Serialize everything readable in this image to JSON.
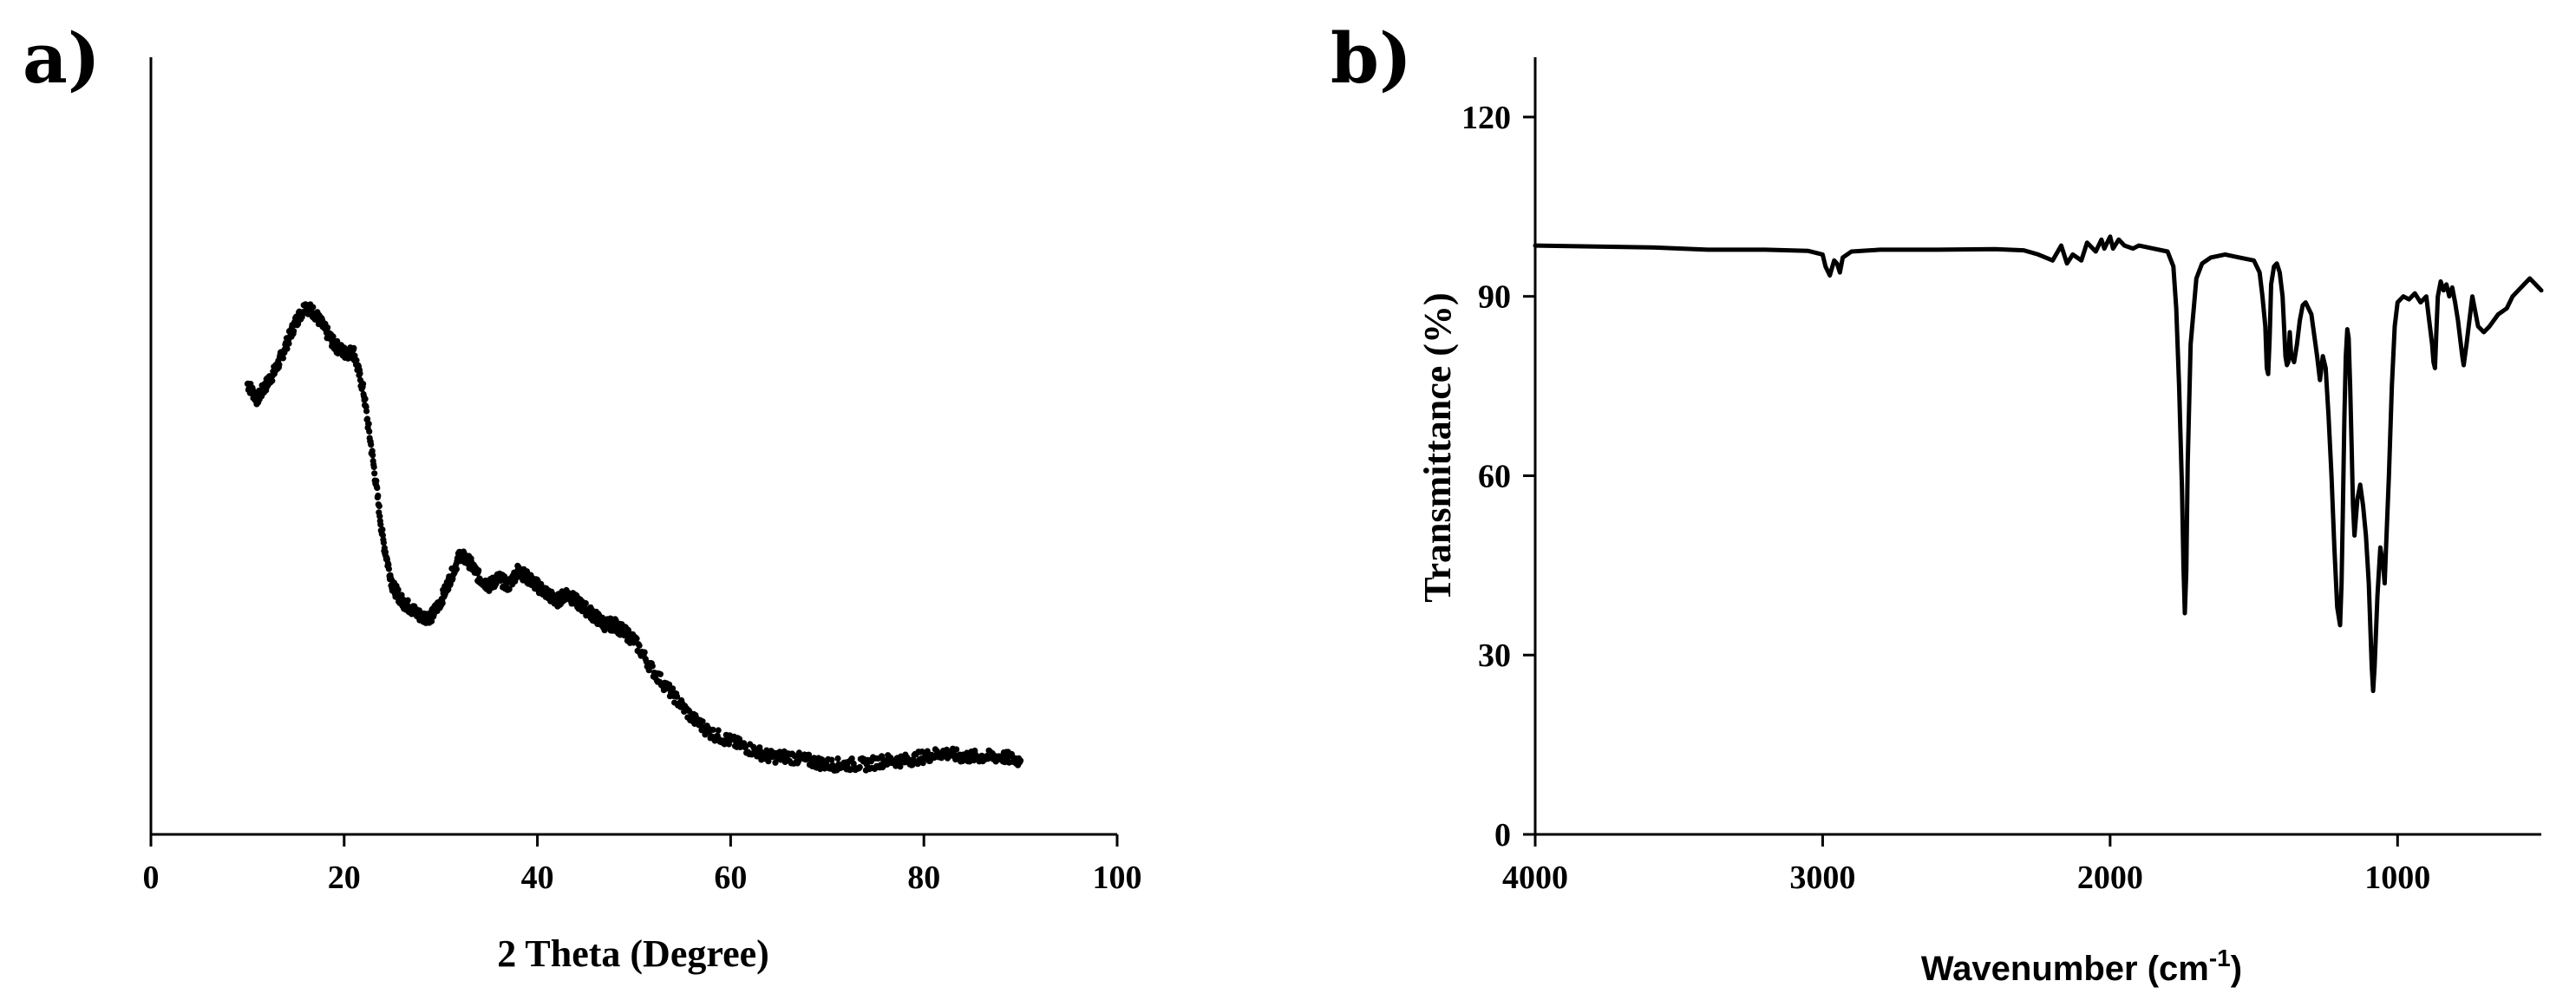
{
  "chart_data": [
    {
      "type": "scatter",
      "panel_label": "a)",
      "title": "",
      "xlabel": "2 Theta (Degree)",
      "ylabel": "",
      "xlim": [
        0,
        100
      ],
      "ylim": [
        0,
        100
      ],
      "y_axis_ticks_shown": false,
      "x_ticks": [
        0,
        20,
        40,
        60,
        80,
        100
      ],
      "x_tick_labels": [
        "0",
        "20",
        "40",
        "60",
        "80",
        "100"
      ],
      "grid": false,
      "legend": "none",
      "series": [
        {
          "x": [
            10,
            11,
            12,
            13,
            14,
            15,
            16,
            17,
            18,
            19,
            20,
            21,
            22,
            23,
            24,
            25,
            26,
            27,
            28,
            29,
            30,
            31,
            32,
            33,
            34,
            35,
            36,
            37,
            38,
            39,
            40,
            41,
            42,
            43,
            44,
            45,
            46,
            47,
            48,
            49,
            50,
            52,
            54,
            56,
            58,
            60,
            62,
            64,
            66,
            68,
            70,
            72,
            74,
            76,
            78,
            80,
            82,
            84,
            86,
            88,
            90
          ],
          "y": [
            58,
            56,
            58,
            60,
            63,
            66,
            68,
            67,
            65,
            63,
            62,
            62,
            57,
            48,
            38,
            32,
            30,
            29,
            28,
            28,
            30,
            33,
            36,
            35,
            33,
            32,
            33,
            32,
            34,
            33,
            32,
            31,
            30,
            31,
            30,
            29,
            28,
            27,
            27,
            26,
            25,
            21,
            18,
            15,
            13,
            12,
            11,
            10,
            10,
            9.5,
            9,
            9,
            9,
            9.5,
            9.5,
            10,
            10.5,
            10,
            10,
            10,
            9.5
          ]
        }
      ]
    },
    {
      "type": "line",
      "panel_label": "b)",
      "title": "",
      "xlabel": "Wavenumber (cm",
      "xlabel_superscript": "-1",
      "xlabel_suffix": ")",
      "ylabel": "Transmittance (%)",
      "xlim": [
        4000,
        500
      ],
      "x_reversed": true,
      "ylim": [
        0,
        130
      ],
      "x_ticks": [
        4000,
        3000,
        2000,
        1000
      ],
      "x_tick_labels": [
        "4000",
        "3000",
        "2000",
        "1000"
      ],
      "y_ticks": [
        0,
        30,
        60,
        90,
        120
      ],
      "y_tick_labels": [
        "0",
        "30",
        "60",
        "90",
        "120"
      ],
      "grid": false,
      "legend": "none",
      "series": [
        {
          "x": [
            4000,
            3600,
            3400,
            3200,
            3050,
            3000,
            2990,
            2975,
            2960,
            2950,
            2940,
            2930,
            2900,
            2800,
            2600,
            2400,
            2300,
            2250,
            2200,
            2170,
            2150,
            2130,
            2100,
            2080,
            2050,
            2030,
            2020,
            2000,
            1990,
            1970,
            1950,
            1920,
            1900,
            1850,
            1800,
            1780,
            1770,
            1760,
            1750,
            1745,
            1740,
            1735,
            1730,
            1720,
            1700,
            1680,
            1650,
            1600,
            1550,
            1500,
            1480,
            1470,
            1460,
            1455,
            1450,
            1445,
            1440,
            1430,
            1420,
            1410,
            1400,
            1395,
            1390,
            1385,
            1380,
            1375,
            1370,
            1360,
            1350,
            1340,
            1330,
            1320,
            1300,
            1280,
            1270,
            1260,
            1250,
            1240,
            1230,
            1220,
            1210,
            1200,
            1195,
            1190,
            1185,
            1180,
            1175,
            1170,
            1165,
            1160,
            1155,
            1150,
            1140,
            1130,
            1120,
            1110,
            1100,
            1095,
            1090,
            1085,
            1080,
            1070,
            1060,
            1050,
            1045,
            1040,
            1030,
            1020,
            1010,
            1000,
            980,
            960,
            940,
            920,
            900,
            890,
            880,
            875,
            870,
            865,
            860,
            850,
            840,
            830,
            820,
            810,
            800,
            790,
            780,
            775,
            770,
            760,
            750,
            740,
            720,
            700,
            680,
            650,
            620,
            600,
            580,
            560,
            540,
            520,
            500
          ],
          "y": [
            98.5,
            98.2,
            97.8,
            97.8,
            97.6,
            97.0,
            95.0,
            93.5,
            96.0,
            95.5,
            94.0,
            96.5,
            97.5,
            97.8,
            97.8,
            97.9,
            97.7,
            97.0,
            96.0,
            98.5,
            95.5,
            97.0,
            96.0,
            99.0,
            97.5,
            99.5,
            98.0,
            100.0,
            98.0,
            99.5,
            98.5,
            98.0,
            98.5,
            98.0,
            97.5,
            95.0,
            88.0,
            75.0,
            58.0,
            45.0,
            37.0,
            44.0,
            62.0,
            82.0,
            93.0,
            95.5,
            96.5,
            97.0,
            96.5,
            96.0,
            94.0,
            90.0,
            85.0,
            78.0,
            77.0,
            83.0,
            92.0,
            95.0,
            95.5,
            94.0,
            90.0,
            85.0,
            80.0,
            78.5,
            79.0,
            84.0,
            80.0,
            79.0,
            82.0,
            86.0,
            88.5,
            89.0,
            87.0,
            80.0,
            76.0,
            80.0,
            78.0,
            70.0,
            60.0,
            48.0,
            38.0,
            35.0,
            42.0,
            55.0,
            70.0,
            80.0,
            84.5,
            83.0,
            75.0,
            65.0,
            55.0,
            50.0,
            56.0,
            58.5,
            55.0,
            50.0,
            42.0,
            35.0,
            28.0,
            24.0,
            28.0,
            40.0,
            48.0,
            45.0,
            42.0,
            48.0,
            60.0,
            75.0,
            85.0,
            89.0,
            90.0,
            89.5,
            90.5,
            89.0,
            90.0,
            86.0,
            82.0,
            79.0,
            78.0,
            84.0,
            90.0,
            92.5,
            91.0,
            92.0,
            90.0,
            91.5,
            89.0,
            86.0,
            82.0,
            80.0,
            78.5,
            82.0,
            86.0,
            90.0,
            85.0,
            84.0,
            85.0,
            87.0,
            88.0,
            90.0,
            91.0,
            92.0,
            93.0,
            92.0,
            91.0
          ]
        }
      ]
    }
  ]
}
